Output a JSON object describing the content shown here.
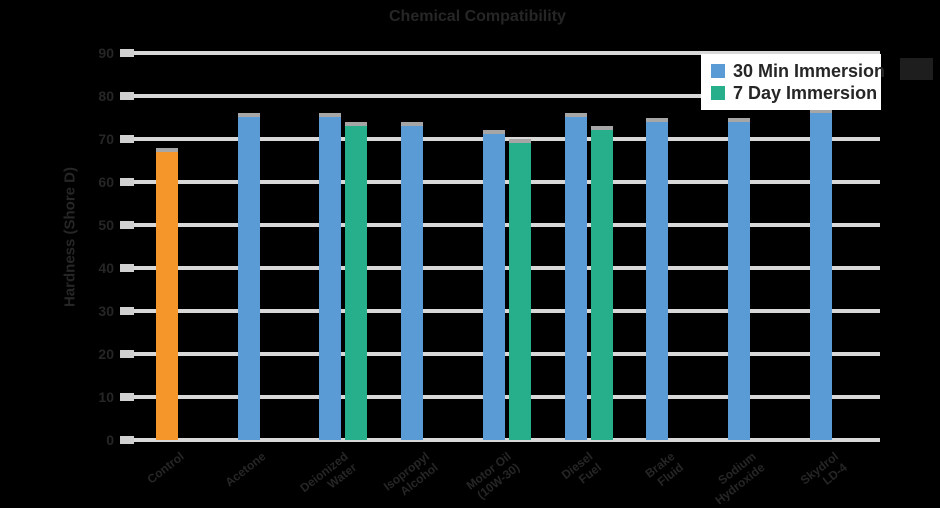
{
  "chart_data": {
    "type": "bar",
    "title": "Chemical Compatibility",
    "ylabel": "Hardness (Shore D)",
    "ylim": [
      0,
      90
    ],
    "ytick_step": 10,
    "yticks": [
      "90",
      "80",
      "70",
      "60",
      "50",
      "40",
      "30",
      "20",
      "10",
      "0"
    ],
    "grid": "horizontal",
    "legend_position": "top-right",
    "categories": [
      "Control",
      "Acetone",
      "Deionized\nWater",
      "Isopropyl\nAlcohol",
      "Motor Oil\n(10W-30)",
      "Diesel\nFuel",
      "Brake\nFluid",
      "Sodium\nHydroxide",
      "Skydrol\nLD-4"
    ],
    "series": [
      {
        "name": "Control",
        "color": "#f5962a",
        "values": [
          68,
          null,
          null,
          null,
          null,
          null,
          null,
          null,
          null
        ]
      },
      {
        "name": "30 Min Immersion",
        "color": "#5b9bd5",
        "values": [
          null,
          76,
          76,
          74,
          72,
          76,
          75,
          75,
          77
        ]
      },
      {
        "name": "7 Day Immersion",
        "color": "#27ae8b",
        "values": [
          null,
          null,
          74,
          null,
          70,
          73,
          null,
          null,
          null
        ]
      }
    ],
    "legend": {
      "entries": [
        "30 Min Immersion",
        "7 Day Immersion"
      ]
    }
  },
  "colors": {
    "background": "#000000",
    "text": "#262626",
    "gridline": "#d8d8d8",
    "bar_cap": "#a6a6a6",
    "legend_bg": "#ffffff",
    "bar_orange": "#f5962a",
    "bar_blue": "#5b9bd5",
    "bar_green": "#27ae8b"
  }
}
